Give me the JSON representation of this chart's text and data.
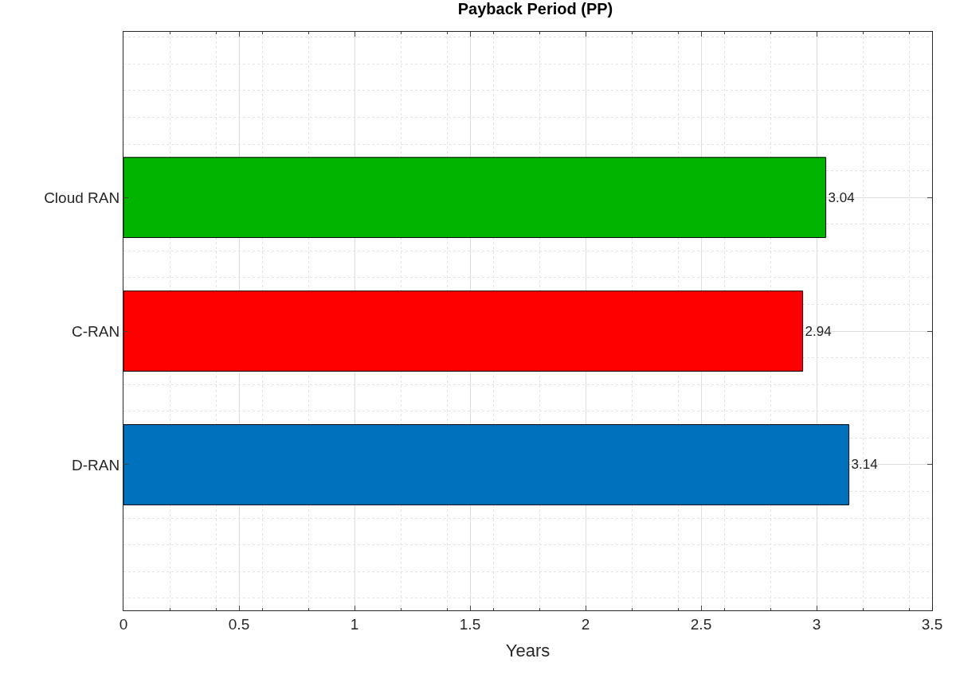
{
  "chart_data": {
    "type": "bar",
    "orientation": "horizontal",
    "title": "Payback Period (PP)",
    "xlabel": "Years",
    "categories": [
      "Cloud RAN",
      "C-RAN",
      "D-RAN"
    ],
    "values": [
      3.04,
      2.94,
      3.14
    ],
    "colors": [
      "#00b400",
      "#ff0000",
      "#0072bd"
    ],
    "xlim": [
      0,
      3.5
    ],
    "xticks": [
      0,
      0.5,
      1,
      1.5,
      2,
      2.5,
      3,
      3.5
    ],
    "grid": true,
    "data_labels": true
  }
}
